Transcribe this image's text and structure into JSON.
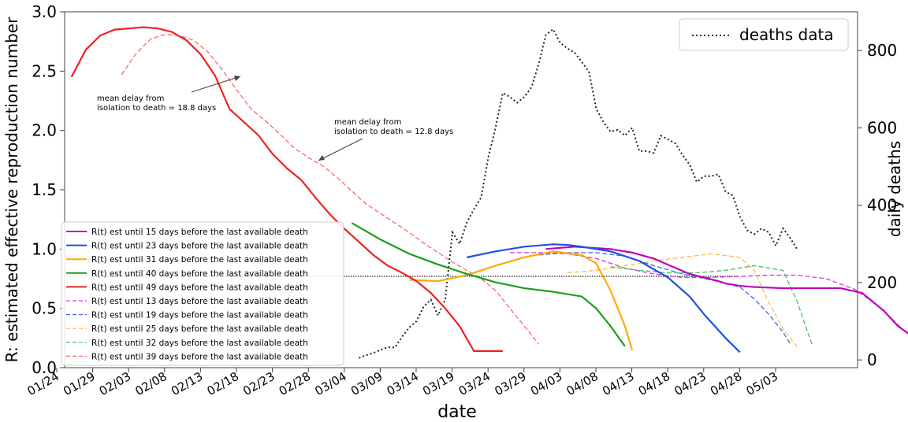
{
  "chart_data": {
    "type": "line",
    "xlabel": "date",
    "ylabel": "R: estimated effective reproduction number",
    "y2label": "daily deaths",
    "x_start": "2020-01-24",
    "x_ticks": [
      "01/24",
      "01/29",
      "02/03",
      "02/08",
      "02/13",
      "02/18",
      "02/23",
      "02/28",
      "03/04",
      "03/09",
      "03/14",
      "03/19",
      "03/24",
      "03/29",
      "04/03",
      "04/08",
      "04/13",
      "04/18",
      "04/23",
      "04/28",
      "05/03"
    ],
    "ylim": [
      0.0,
      3.0
    ],
    "y_ticks": [
      "0.0",
      "0.5",
      "1.0",
      "1.5",
      "2.0",
      "2.5",
      "3.0"
    ],
    "y2lim": [
      -20,
      900
    ],
    "y2_ticks": [
      "0",
      "200",
      "400",
      "600",
      "800"
    ],
    "hline": 0.77,
    "annotations": [
      {
        "text": "mean delay from isolation to death = 18.8 days",
        "lines": [
          "mean delay from",
          "isolation to death = 18.8 days"
        ],
        "target": {
          "x": "02/18",
          "y": 2.47
        }
      },
      {
        "text": "mean delay from isolation to death = 12.8 days",
        "lines": [
          "mean delay from",
          "isolation to death = 12.8 days"
        ],
        "target": {
          "x": "02/28",
          "y": 1.74
        }
      }
    ],
    "deaths_legend": "deaths data",
    "legend_placement": "upper-right",
    "series_legend_placement": "lower-left",
    "series": [
      {
        "name": "R(t) est until 15 days before the last available death",
        "color": "#bf00bf",
        "dash": "solid",
        "x": [
          3,
          7,
          12,
          15,
          18,
          23,
          27,
          28,
          30,
          32,
          36,
          40,
          44,
          47,
          50,
          52,
          55
        ],
        "y": [
          1.0,
          1.02,
          1.0,
          0.97,
          0.92,
          0.79,
          0.73,
          0.71,
          0.69,
          0.68,
          0.67,
          0.67,
          0.67,
          0.63,
          0.48,
          0.35,
          0.22
        ],
        "offset_days": 60
      },
      {
        "name": "R(t) est until 23 days before the last available death",
        "color": "#1f4fe6",
        "dash": "solid",
        "x": [
          0,
          4,
          8,
          12,
          14,
          16,
          20,
          24,
          28,
          31,
          33,
          36,
          38
        ],
        "y": [
          0.93,
          0.98,
          1.02,
          1.04,
          1.035,
          1.02,
          0.98,
          0.9,
          0.76,
          0.6,
          0.45,
          0.25,
          0.13
        ],
        "offset_days": 52
      },
      {
        "name": "R(t) est until 31 days before the last available death",
        "color": "#ffaa00",
        "dash": "solid",
        "x": [
          0,
          4,
          8,
          12,
          16,
          20,
          24,
          26,
          28,
          30,
          31
        ],
        "y": [
          0.74,
          0.73,
          0.78,
          0.86,
          0.93,
          0.98,
          0.95,
          0.88,
          0.65,
          0.35,
          0.15
        ],
        "offset_days": 44
      },
      {
        "name": "R(t) est until 40 days before the last available death",
        "color": "#1a9e1a",
        "dash": "solid",
        "x": [
          0,
          4,
          8,
          12,
          16,
          20,
          24,
          28,
          32,
          34,
          36,
          38
        ],
        "y": [
          1.22,
          1.08,
          0.96,
          0.87,
          0.79,
          0.72,
          0.67,
          0.64,
          0.6,
          0.5,
          0.35,
          0.18
        ],
        "offset_days": 36
      },
      {
        "name": "R(t) est until 49 days before the last available death",
        "color": "#ee2222",
        "dash": "solid",
        "x": [
          0,
          2,
          4,
          6,
          8,
          10,
          12,
          14,
          16,
          18,
          20,
          22,
          24,
          26,
          28,
          30,
          32,
          34,
          36,
          38,
          40,
          42,
          44,
          46,
          48,
          50,
          52,
          54,
          56,
          58,
          60
        ],
        "y": [
          2.45,
          2.68,
          2.8,
          2.85,
          2.86,
          2.87,
          2.86,
          2.83,
          2.76,
          2.64,
          2.46,
          2.18,
          2.07,
          1.96,
          1.8,
          1.68,
          1.58,
          1.43,
          1.29,
          1.17,
          1.06,
          0.95,
          0.86,
          0.8,
          0.73,
          0.63,
          0.5,
          0.35,
          0.14,
          0.14,
          0.14
        ],
        "offset_days": -3
      }
    ],
    "series_dashed": [
      {
        "name": "R(t) est until 13 days before the last available death",
        "color": "#dd33dd",
        "x": [
          0,
          4,
          8,
          12,
          16,
          20,
          24,
          28,
          32,
          36,
          40,
          44,
          48,
          51,
          53,
          55,
          58
        ],
        "y": [
          0.97,
          0.97,
          0.96,
          0.92,
          0.84,
          0.79,
          0.76,
          0.76,
          0.77,
          0.78,
          0.78,
          0.75,
          0.66,
          0.53,
          0.42,
          0.3,
          0.2
        ],
        "offset_days": 58
      },
      {
        "name": "R(t) est until 19 days before the last available death",
        "color": "#4466ee",
        "x": [
          0,
          4,
          8,
          12,
          16,
          20,
          24,
          28,
          30,
          32,
          34,
          35
        ],
        "y": [
          0.95,
          0.97,
          0.97,
          0.94,
          0.86,
          0.79,
          0.74,
          0.68,
          0.58,
          0.45,
          0.3,
          0.2
        ],
        "offset_days": 62
      },
      {
        "name": "R(t) est until 25 days before the last available death",
        "color": "#ffbb44",
        "x": [
          0,
          4,
          8,
          12,
          16,
          20,
          24,
          26,
          28,
          30,
          32
        ],
        "y": [
          0.8,
          0.82,
          0.86,
          0.9,
          0.93,
          0.96,
          0.93,
          0.82,
          0.55,
          0.33,
          0.17
        ],
        "offset_days": 66
      },
      {
        "name": "R(t) est until 32 days before the last available death",
        "color": "#44bb66",
        "x": [
          0,
          4,
          8,
          12,
          16,
          20,
          24,
          26,
          28
        ],
        "y": [
          0.85,
          0.82,
          0.8,
          0.8,
          0.82,
          0.86,
          0.82,
          0.55,
          0.2
        ],
        "offset_days": 72
      },
      {
        "name": "R(t) est until 39 days before the last available death",
        "color": "#ff6666",
        "x": [
          0,
          2,
          4,
          6,
          8,
          10,
          12,
          14,
          16,
          18,
          20,
          22,
          24,
          26,
          28,
          30,
          32,
          34,
          36,
          38,
          40,
          42,
          44,
          46,
          48,
          50,
          52,
          54,
          56,
          58
        ],
        "y": [
          2.47,
          2.65,
          2.77,
          2.81,
          2.8,
          2.76,
          2.66,
          2.51,
          2.34,
          2.18,
          2.08,
          1.97,
          1.85,
          1.77,
          1.7,
          1.6,
          1.49,
          1.38,
          1.3,
          1.22,
          1.14,
          1.05,
          0.97,
          0.89,
          0.82,
          0.75,
          0.65,
          0.5,
          0.35,
          0.2
        ],
        "offset_days": 4
      }
    ],
    "deaths": {
      "name": "deaths data",
      "color": "#222222",
      "day_start": 37,
      "values": [
        5,
        12,
        18,
        26,
        33,
        32,
        60,
        84,
        100,
        138,
        156,
        115,
        156,
        330,
        300,
        355,
        390,
        420,
        525,
        600,
        690,
        680,
        665,
        680,
        705,
        765,
        840,
        855,
        820,
        805,
        795,
        770,
        745,
        650,
        615,
        590,
        595,
        580,
        600,
        540,
        540,
        535,
        580,
        570,
        560,
        530,
        505,
        460,
        475,
        475,
        480,
        435,
        425,
        370,
        335,
        325,
        340,
        330,
        295,
        340,
        315,
        285
      ]
    }
  }
}
